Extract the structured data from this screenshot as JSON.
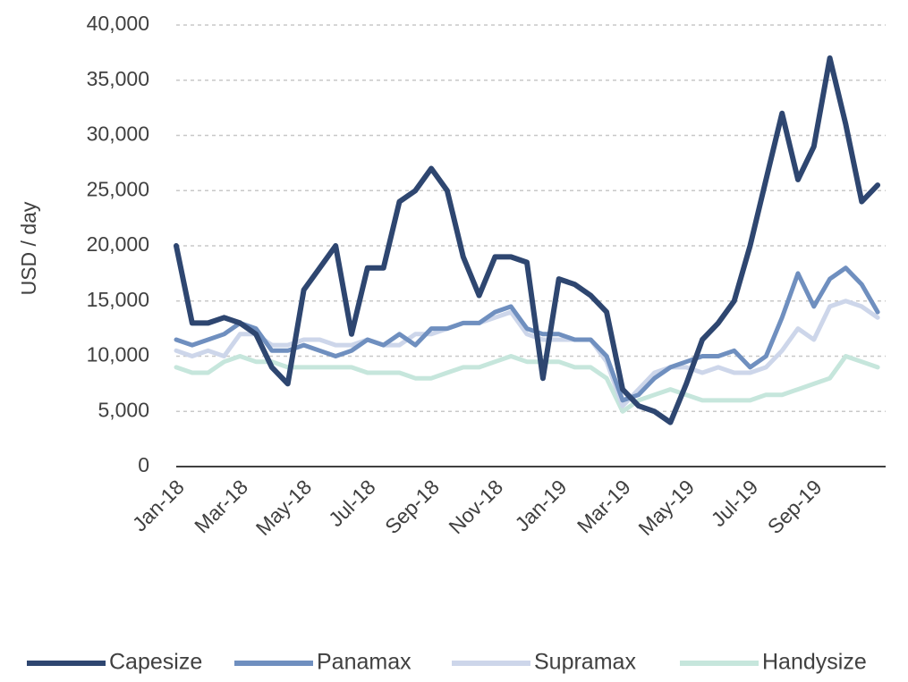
{
  "chart_data": {
    "type": "line",
    "y_label": "USD / day",
    "categories": [
      "Jan-18",
      null,
      null,
      null,
      "Mar-18",
      null,
      null,
      null,
      "May-18",
      null,
      null,
      null,
      "Jul-18",
      null,
      null,
      null,
      "Sep-18",
      null,
      null,
      null,
      "Nov-18",
      null,
      null,
      null,
      "Jan-19",
      null,
      null,
      null,
      "Mar-19",
      null,
      null,
      null,
      "May-19",
      null,
      null,
      null,
      "Jul-19",
      null,
      null,
      null,
      "Sep-19",
      null,
      null,
      null,
      null
    ],
    "series": [
      {
        "name": "Capesize",
        "color": "#2e4670",
        "values": [
          20000,
          13000,
          13000,
          13500,
          13000,
          12000,
          9000,
          7500,
          16000,
          18000,
          20000,
          12000,
          18000,
          18000,
          24000,
          25000,
          27000,
          25000,
          19000,
          15500,
          19000,
          19000,
          18500,
          8000,
          17000,
          16500,
          15500,
          14000,
          7000,
          5500,
          5000,
          4000,
          7500,
          11500,
          13000,
          15000,
          20000,
          26000,
          32000,
          26000,
          29000,
          37000,
          31000,
          24000,
          25500
        ]
      },
      {
        "name": "Panamax",
        "color": "#6f8fbf",
        "values": [
          11500,
          11000,
          11500,
          12000,
          13000,
          12500,
          10500,
          10500,
          11000,
          10500,
          10000,
          10500,
          11500,
          11000,
          12000,
          11000,
          12500,
          12500,
          13000,
          13000,
          14000,
          14500,
          12500,
          12000,
          12000,
          11500,
          11500,
          10000,
          6000,
          6500,
          8000,
          9000,
          9500,
          10000,
          10000,
          10500,
          9000,
          10000,
          13500,
          17500,
          14500,
          17000,
          18000,
          16500,
          14000
        ]
      },
      {
        "name": "Supramax",
        "color": "#cdd6ea",
        "values": [
          10500,
          10000,
          10500,
          10000,
          12000,
          12000,
          11000,
          11000,
          11500,
          11500,
          11000,
          11000,
          11500,
          11000,
          11000,
          12000,
          12000,
          12500,
          13000,
          13000,
          13500,
          14000,
          12000,
          11500,
          11500,
          11500,
          11500,
          9500,
          5500,
          7000,
          8500,
          9000,
          9000,
          8500,
          9000,
          8500,
          8500,
          9000,
          10500,
          12500,
          11500,
          14500,
          15000,
          14500,
          13500
        ]
      },
      {
        "name": "Handysize",
        "color": "#c6e6dc",
        "values": [
          9000,
          8500,
          8500,
          9500,
          10000,
          9500,
          9500,
          9000,
          9000,
          9000,
          9000,
          9000,
          8500,
          8500,
          8500,
          8000,
          8000,
          8500,
          9000,
          9000,
          9500,
          10000,
          9500,
          9500,
          9500,
          9000,
          9000,
          8000,
          5000,
          6000,
          6500,
          7000,
          6500,
          6000,
          6000,
          6000,
          6000,
          6500,
          6500,
          7000,
          7500,
          8000,
          10000,
          9500,
          9000
        ]
      }
    ],
    "ylim": [
      0,
      40000
    ],
    "yticks": [
      0,
      {
        "value": 5000,
        "label": "5,000"
      },
      {
        "value": 10000,
        "label": "10,000"
      },
      {
        "value": 15000,
        "label": "15,000"
      },
      {
        "value": 20000,
        "label": "20,000"
      },
      {
        "value": 25000,
        "label": "25,000"
      },
      {
        "value": 30000,
        "label": "30,000"
      },
      {
        "value": 35000,
        "label": "35,000"
      },
      {
        "value": 40000,
        "label": "40,000"
      }
    ],
    "grid": true,
    "legend": "bottom"
  }
}
